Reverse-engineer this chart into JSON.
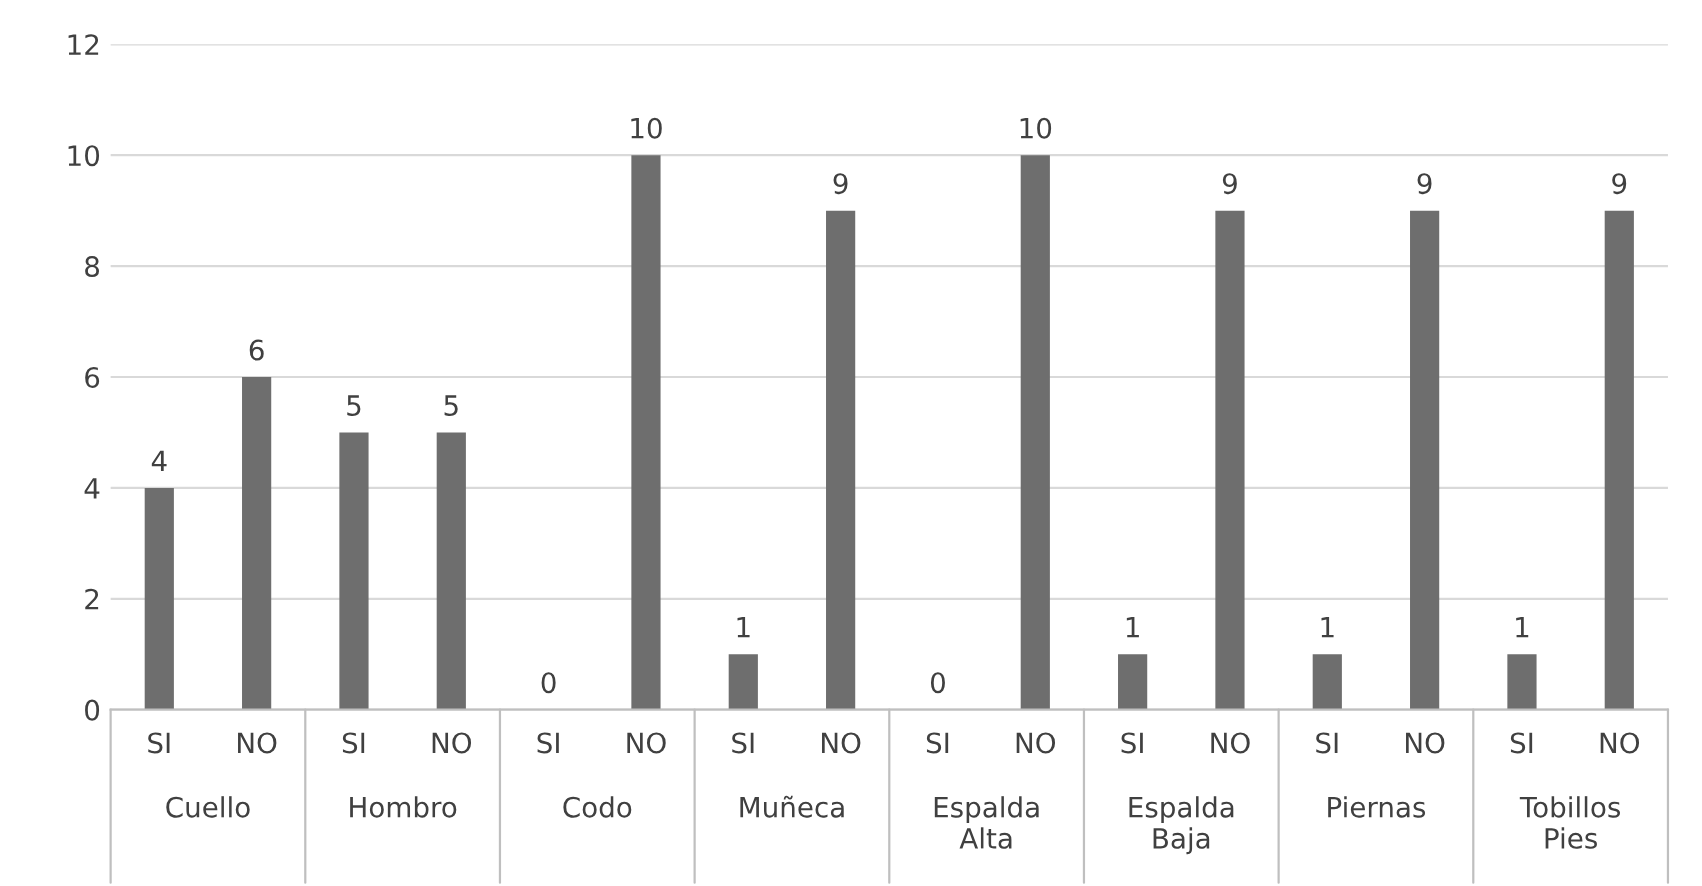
{
  "chart_data": {
    "type": "bar",
    "categories": [
      "SI",
      "NO",
      "SI",
      "NO",
      "SI",
      "NO",
      "SI",
      "NO",
      "SI",
      "NO",
      "SI",
      "NO",
      "SI",
      "NO",
      "SI",
      "NO"
    ],
    "values": [
      4,
      6,
      5,
      5,
      0,
      10,
      1,
      9,
      0,
      10,
      1,
      9,
      1,
      9,
      1,
      9
    ],
    "color": "#6e6e6e",
    "annotations": [
      "Cuello",
      "Hombro",
      "Codo",
      "Muñeca",
      "Espalda\nAlta",
      "Espalda\nBaja",
      "Piernas",
      "Tobillos\nPies"
    ],
    "ylim": [
      0,
      12
    ],
    "yticks": [
      0,
      2,
      4,
      6,
      8,
      10,
      12
    ],
    "grid": "y",
    "data_labels": true
  }
}
